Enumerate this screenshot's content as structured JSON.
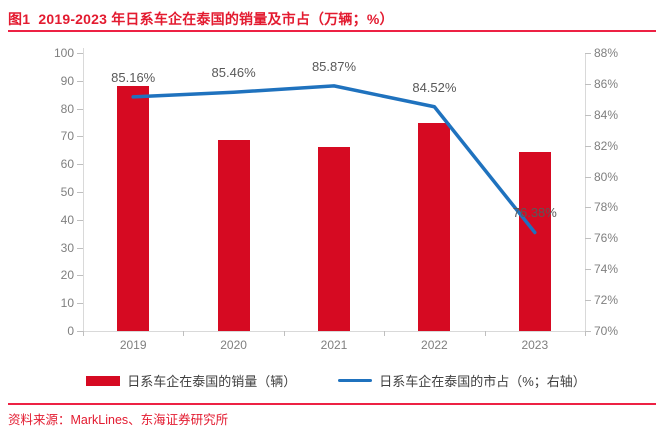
{
  "header": {
    "figure_label": "图1",
    "title": "2019-2023 年日系车企在泰国的销量及市占（万辆；%）"
  },
  "colors": {
    "accent_red": "#E31B30",
    "bar_red": "#D60A22",
    "line_blue": "#1F72BE",
    "axis_text": "#7F7F7F",
    "data_label_text": "#595959"
  },
  "chart_data": {
    "type": "bar+line combo",
    "categories": [
      "2019",
      "2020",
      "2021",
      "2022",
      "2023"
    ],
    "series": [
      {
        "name": "日系车企在泰国的销量（辆）",
        "type": "bar",
        "axis": "left",
        "color": "#D60A22",
        "values": [
          88.0,
          68.7,
          66.3,
          74.9,
          64.5
        ]
      },
      {
        "name": "日系车企在泰国的市占（%；右轴）",
        "type": "line",
        "axis": "right",
        "color": "#1F72BE",
        "values": [
          85.16,
          85.46,
          85.87,
          84.52,
          76.38
        ],
        "point_labels": [
          "85.16%",
          "85.46%",
          "85.87%",
          "84.52%",
          "76.38%"
        ]
      }
    ],
    "left_axis": {
      "min": 0,
      "max": 100,
      "step": 10,
      "ticks": [
        "0",
        "10",
        "20",
        "30",
        "40",
        "50",
        "60",
        "70",
        "80",
        "90",
        "100"
      ]
    },
    "right_axis": {
      "min": 70,
      "max": 88,
      "step": 2,
      "ticks": [
        "70%",
        "72%",
        "74%",
        "76%",
        "78%",
        "80%",
        "82%",
        "84%",
        "86%",
        "88%"
      ]
    },
    "grid": "off",
    "legend_position": "bottom"
  },
  "legend": {
    "items": [
      {
        "label": "日系车企在泰国的销量（辆）",
        "marker": "bar",
        "color": "#D60A22"
      },
      {
        "label": "日系车企在泰国的市占（%；右轴）",
        "marker": "line",
        "color": "#1F72BE"
      }
    ]
  },
  "footer": {
    "source": "资料来源：MarkLines、东海证券研究所"
  }
}
